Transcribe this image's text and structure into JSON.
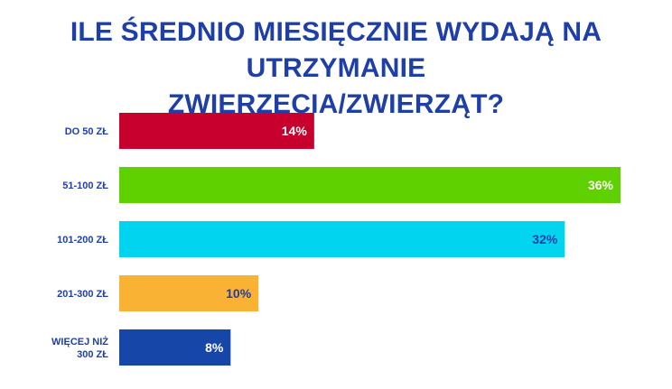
{
  "chart_data": {
    "type": "bar",
    "orientation": "horizontal",
    "title_lines": [
      "ILE ŚREDNIO MIESIĘCZNIE WYDAJĄ NA UTRZYMANIE",
      "ZWIERZĘCIA/ZWIERZĄT?"
    ],
    "categories": [
      [
        "DO 50 ZŁ"
      ],
      [
        "51-100 ZŁ"
      ],
      [
        "101-200 ZŁ"
      ],
      [
        "201-300 ZŁ"
      ],
      [
        "WIĘCEJ NIŻ",
        "300 ZŁ"
      ]
    ],
    "values": [
      14,
      36,
      32,
      10,
      8
    ],
    "value_labels": [
      "14%",
      "36%",
      "32%",
      "10%",
      "8%"
    ],
    "bar_colors": [
      "#c8002d",
      "#5fd100",
      "#00d4ef",
      "#f9b233",
      "#1546a8"
    ],
    "value_label_colors": [
      "#ffffff",
      "#ffffff",
      "#1f3fa8",
      "#1f3fa8",
      "#ffffff"
    ],
    "xlim": [
      0,
      36
    ],
    "grid": false,
    "legend": "none"
  }
}
